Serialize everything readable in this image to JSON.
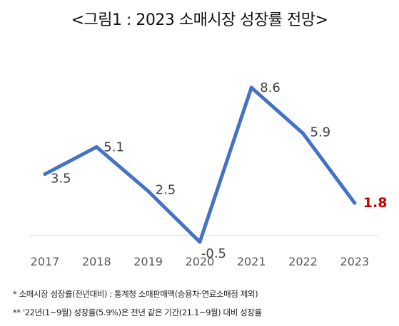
{
  "chart_data": {
    "type": "line",
    "title": "<그림1 : 2023 소매시장 성장률 전망>",
    "categories": [
      "2017",
      "2018",
      "2019",
      "2020",
      "2021",
      "2022",
      "2023"
    ],
    "series": [
      {
        "values": [
          3.5,
          5.1,
          2.5,
          -0.5,
          8.6,
          5.9,
          1.8
        ]
      }
    ],
    "data_labels": [
      "3.5",
      "5.1",
      "2.5",
      "-0.5",
      "8.6",
      "5.9",
      "1.8"
    ],
    "highlight": {
      "index": 6,
      "color": "#c00000"
    },
    "line_color": "#4472c4",
    "label_color": "#404040",
    "ylim": [
      -0.5,
      9
    ],
    "grid": false,
    "xlabel": "",
    "ylabel": ""
  },
  "notes": [
    "* 소매시장 성장률(전년대비) : 통계청 소매판매액(승용차·연료소매점 제외)",
    "** '22년(1~9월) 성장률(5.9%)은 전년 같은 기간(21.1~9월) 대비 성장률"
  ]
}
